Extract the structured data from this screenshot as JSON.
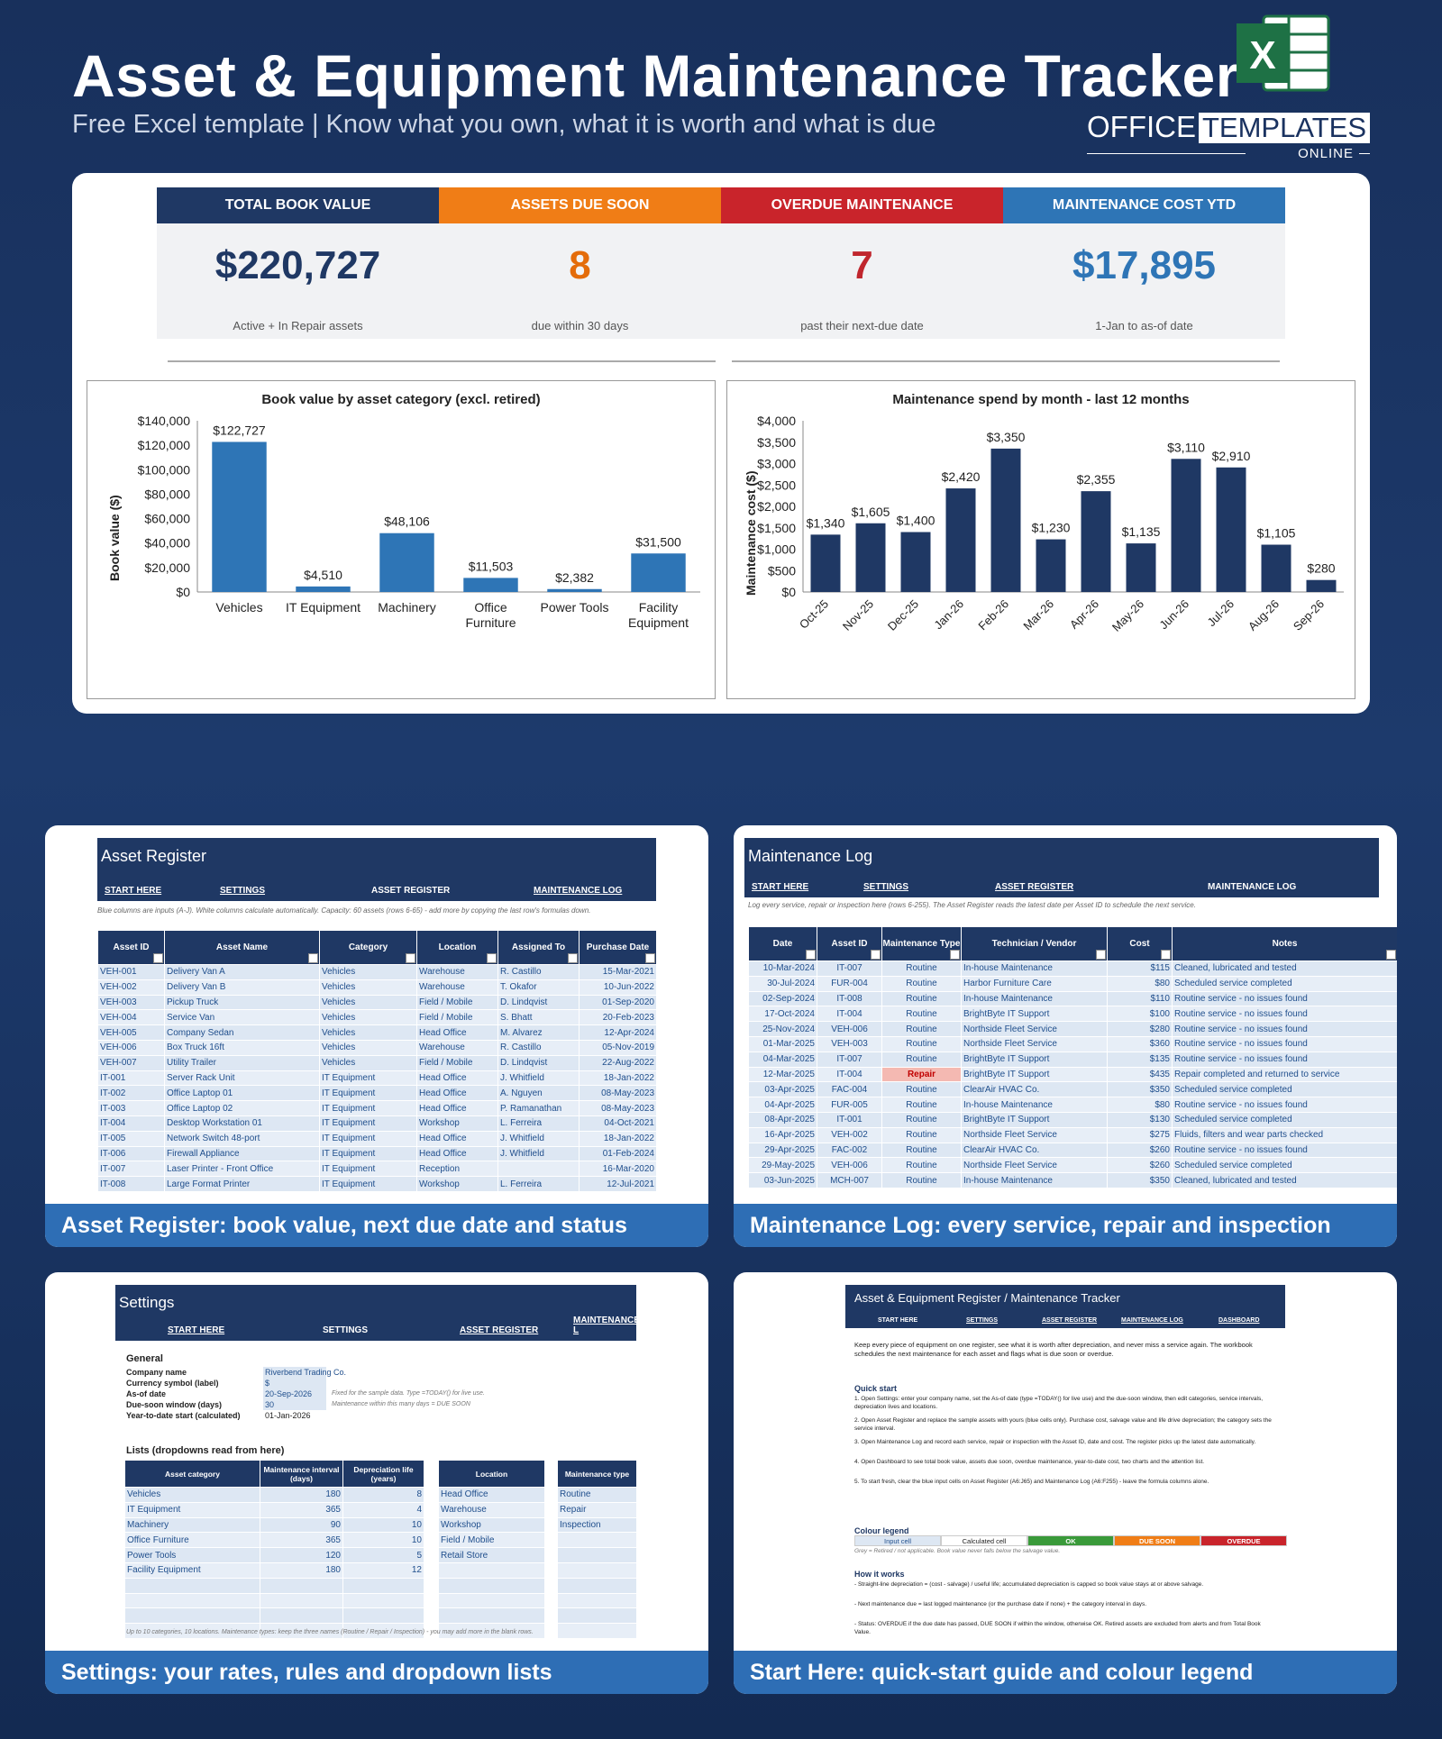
{
  "hero": {
    "title": "Asset & Equipment Maintenance Tracker",
    "subtitle": "Free Excel template  |  Know what you own, what it is worth and what is due",
    "brand_office": "OFFICE",
    "brand_templates": "TEMPLATES",
    "brand_online": "ONLINE",
    "excel_letter": "X"
  },
  "kpis": [
    {
      "label": "TOTAL BOOK VALUE",
      "value": "$220,727",
      "note": "Active + In Repair assets",
      "color": "#1f3864",
      "header_color": "#1f3864"
    },
    {
      "label": "ASSETS DUE SOON",
      "value": "8",
      "note": "due within 30 days",
      "color": "#e46c0a",
      "header_color": "#f07d16"
    },
    {
      "label": "OVERDUE MAINTENANCE",
      "value": "7",
      "note": "past their next-due date",
      "color": "#c0262d",
      "header_color": "#c9242b"
    },
    {
      "label": "MAINTENANCE COST YTD",
      "value": "$17,895",
      "note": "1-Jan to as-of date",
      "color": "#2e75b6",
      "header_color": "#2e75b6"
    }
  ],
  "chart_data": [
    {
      "type": "bar",
      "title": "Book value by asset category (excl. retired)",
      "ylabel": "Book value ($)",
      "categories": [
        "Vehicles",
        "IT Equipment",
        "Machinery",
        "Office Furniture",
        "Power Tools",
        "Facility Equipment"
      ],
      "category_lines": [
        [
          "Vehicles"
        ],
        [
          "IT Equipment"
        ],
        [
          "Machinery"
        ],
        [
          "Office",
          "Furniture"
        ],
        [
          "Power Tools"
        ],
        [
          "Facility",
          "Equipment"
        ]
      ],
      "values": [
        122727,
        4510,
        48106,
        11503,
        2382,
        31500
      ],
      "labels": [
        "$122,727",
        "$4,510",
        "$48,106",
        "$11,503",
        "$2,382",
        "$31,500"
      ],
      "ylim": [
        0,
        140000
      ],
      "yticks": [
        0,
        20000,
        40000,
        60000,
        80000,
        100000,
        120000,
        140000
      ],
      "ytick_labels": [
        "$0",
        "$20,000",
        "$40,000",
        "$60,000",
        "$80,000",
        "$100,000",
        "$120,000",
        "$140,000"
      ],
      "color": "#2e75b6"
    },
    {
      "type": "bar",
      "title": "Maintenance spend by month - last 12 months",
      "ylabel": "Maintenance cost ($)",
      "categories": [
        "Oct-25",
        "Nov-25",
        "Dec-25",
        "Jan-26",
        "Feb-26",
        "Mar-26",
        "Apr-26",
        "May-26",
        "Jun-26",
        "Jul-26",
        "Aug-26",
        "Sep-26"
      ],
      "values": [
        1340,
        1605,
        1400,
        2420,
        3350,
        1230,
        2355,
        1135,
        3110,
        2910,
        1105,
        280
      ],
      "labels": [
        "$1,340",
        "$1,605",
        "$1,400",
        "$2,420",
        "$3,350",
        "$1,230",
        "$2,355",
        "$1,135",
        "$3,110",
        "$2,910",
        "$1,105",
        "$280"
      ],
      "ylim": [
        0,
        4000
      ],
      "yticks": [
        0,
        500,
        1000,
        1500,
        2000,
        2500,
        3000,
        3500,
        4000
      ],
      "ytick_labels": [
        "$0",
        "$500",
        "$1,000",
        "$1,500",
        "$2,000",
        "$2,500",
        "$3,000",
        "$3,500",
        "$4,000"
      ],
      "color": "#1f3864"
    }
  ],
  "asset_register": {
    "title": "Asset Register",
    "nav": [
      "START HERE",
      "SETTINGS",
      "ASSET REGISTER",
      "MAINTENANCE LOG"
    ],
    "note": "Blue columns are inputs (A-J). White columns calculate automatically. Capacity: 60 assets (rows 6-65) - add more by copying the last row's formulas down.",
    "columns": [
      "Asset ID",
      "Asset Name",
      "Category",
      "Location",
      "Assigned To",
      "Purchase Date"
    ],
    "rows": [
      [
        "VEH-001",
        "Delivery Van A",
        "Vehicles",
        "Warehouse",
        "R. Castillo",
        "15-Mar-2021"
      ],
      [
        "VEH-002",
        "Delivery Van B",
        "Vehicles",
        "Warehouse",
        "T. Okafor",
        "10-Jun-2022"
      ],
      [
        "VEH-003",
        "Pickup Truck",
        "Vehicles",
        "Field / Mobile",
        "D. Lindqvist",
        "01-Sep-2020"
      ],
      [
        "VEH-004",
        "Service Van",
        "Vehicles",
        "Field / Mobile",
        "S. Bhatt",
        "20-Feb-2023"
      ],
      [
        "VEH-005",
        "Company Sedan",
        "Vehicles",
        "Head Office",
        "M. Alvarez",
        "12-Apr-2024"
      ],
      [
        "VEH-006",
        "Box Truck 16ft",
        "Vehicles",
        "Warehouse",
        "R. Castillo",
        "05-Nov-2019"
      ],
      [
        "VEH-007",
        "Utility Trailer",
        "Vehicles",
        "Field / Mobile",
        "D. Lindqvist",
        "22-Aug-2022"
      ],
      [
        "IT-001",
        "Server Rack Unit",
        "IT Equipment",
        "Head Office",
        "J. Whitfield",
        "18-Jan-2022"
      ],
      [
        "IT-002",
        "Office Laptop 01",
        "IT Equipment",
        "Head Office",
        "A. Nguyen",
        "08-May-2023"
      ],
      [
        "IT-003",
        "Office Laptop 02",
        "IT Equipment",
        "Head Office",
        "P. Ramanathan",
        "08-May-2023"
      ],
      [
        "IT-004",
        "Desktop Workstation 01",
        "IT Equipment",
        "Workshop",
        "L. Ferreira",
        "04-Oct-2021"
      ],
      [
        "IT-005",
        "Network Switch 48-port",
        "IT Equipment",
        "Head Office",
        "J. Whitfield",
        "18-Jan-2022"
      ],
      [
        "IT-006",
        "Firewall Appliance",
        "IT Equipment",
        "Head Office",
        "J. Whitfield",
        "01-Feb-2024"
      ],
      [
        "IT-007",
        "Laser Printer - Front Office",
        "IT Equipment",
        "Reception",
        "",
        "16-Mar-2020"
      ],
      [
        "IT-008",
        "Large Format Printer",
        "IT Equipment",
        "Workshop",
        "L. Ferreira",
        "12-Jul-2021"
      ]
    ],
    "caption": "Asset Register: book value, next due date and status"
  },
  "maintenance_log": {
    "title": "Maintenance Log",
    "nav": [
      "START HERE",
      "SETTINGS",
      "ASSET REGISTER",
      "MAINTENANCE LOG"
    ],
    "note": "Log every service, repair or inspection here (rows 6-255). The Asset Register reads the latest date per Asset ID to schedule the next service.",
    "columns": [
      "Date",
      "Asset ID",
      "Maintenance Type",
      "Technician / Vendor",
      "Cost",
      "Notes"
    ],
    "rows": [
      [
        "10-Mar-2024",
        "IT-007",
        "Routine",
        "In-house Maintenance",
        "$115",
        "Cleaned, lubricated and tested"
      ],
      [
        "30-Jul-2024",
        "FUR-004",
        "Routine",
        "Harbor Furniture Care",
        "$80",
        "Scheduled service completed"
      ],
      [
        "02-Sep-2024",
        "IT-008",
        "Routine",
        "In-house Maintenance",
        "$110",
        "Routine service - no issues found"
      ],
      [
        "17-Oct-2024",
        "IT-004",
        "Routine",
        "BrightByte IT Support",
        "$100",
        "Routine service - no issues found"
      ],
      [
        "25-Nov-2024",
        "VEH-006",
        "Routine",
        "Northside Fleet Service",
        "$280",
        "Routine service - no issues found"
      ],
      [
        "01-Mar-2025",
        "VEH-003",
        "Routine",
        "Northside Fleet Service",
        "$360",
        "Routine service - no issues found"
      ],
      [
        "04-Mar-2025",
        "IT-007",
        "Routine",
        "BrightByte IT Support",
        "$135",
        "Routine service - no issues found"
      ],
      [
        "12-Mar-2025",
        "IT-004",
        "Repair",
        "BrightByte IT Support",
        "$435",
        "Repair completed and returned to service"
      ],
      [
        "03-Apr-2025",
        "FAC-004",
        "Routine",
        "ClearAir HVAC Co.",
        "$350",
        "Scheduled service completed"
      ],
      [
        "04-Apr-2025",
        "FUR-005",
        "Routine",
        "In-house Maintenance",
        "$80",
        "Routine service - no issues found"
      ],
      [
        "08-Apr-2025",
        "IT-001",
        "Routine",
        "BrightByte IT Support",
        "$130",
        "Scheduled service completed"
      ],
      [
        "16-Apr-2025",
        "VEH-002",
        "Routine",
        "Northside Fleet Service",
        "$275",
        "Fluids, filters and wear parts checked"
      ],
      [
        "29-Apr-2025",
        "FAC-002",
        "Routine",
        "ClearAir HVAC Co.",
        "$260",
        "Routine service - no issues found"
      ],
      [
        "29-May-2025",
        "VEH-006",
        "Routine",
        "Northside Fleet Service",
        "$260",
        "Scheduled service completed"
      ],
      [
        "03-Jun-2025",
        "MCH-007",
        "Routine",
        "In-house Maintenance",
        "$350",
        "Cleaned, lubricated and tested"
      ]
    ],
    "caption": "Maintenance Log: every service, repair and inspection"
  },
  "settings": {
    "title": "Settings",
    "nav": [
      "START HERE",
      "SETTINGS",
      "ASSET REGISTER",
      "MAINTENANCE L"
    ],
    "general_heading": "General",
    "general": [
      {
        "label": "Company name",
        "value": "Riverbend Trading Co.",
        "note": ""
      },
      {
        "label": "Currency symbol (label)",
        "value": "$",
        "note": ""
      },
      {
        "label": "As-of date",
        "value": "20-Sep-2026",
        "note": "Fixed for the sample data. Type =TODAY() for live use."
      },
      {
        "label": "Due-soon window (days)",
        "value": "30",
        "note": "Maintenance within this many days = DUE SOON"
      },
      {
        "label": "Year-to-date start (calculated)",
        "value": "01-Jan-2026",
        "note": ""
      }
    ],
    "lists_heading": "Lists (dropdowns read from here)",
    "cat_columns": [
      "Asset category",
      "Maintenance interval (days)",
      "Depreciation life (years)"
    ],
    "cat_rows": [
      [
        "Vehicles",
        "180",
        "8"
      ],
      [
        "IT Equipment",
        "365",
        "4"
      ],
      [
        "Machinery",
        "90",
        "10"
      ],
      [
        "Office Furniture",
        "365",
        "10"
      ],
      [
        "Power Tools",
        "120",
        "5"
      ],
      [
        "Facility Equipment",
        "180",
        "12"
      ]
    ],
    "loc_column": "Location",
    "loc_rows": [
      "Head Office",
      "Warehouse",
      "Workshop",
      "Field / Mobile",
      "Retail Store"
    ],
    "type_column": "Maintenance type",
    "type_rows": [
      "Routine",
      "Repair",
      "Inspection"
    ],
    "footnote": "Up to 10 categories, 10 locations. Maintenance types: keep the three names (Routine / Repair / Inspection) - you may add more in the blank rows.",
    "caption": "Settings: your rates, rules and dropdown lists"
  },
  "start_here": {
    "title": "Asset & Equipment Register / Maintenance Tracker",
    "nav": [
      "START HERE",
      "SETTINGS",
      "ASSET REGISTER",
      "MAINTENANCE LOG",
      "DASHBOARD"
    ],
    "intro": "Keep every piece of equipment on one register, see what it is worth after depreciation, and never miss a service again. The workbook schedules the next maintenance for each asset and flags what is due soon or overdue.",
    "quick_heading": "Quick start",
    "steps": [
      "1.  Open Settings: enter your company name, set the As-of date (type =TODAY() for live use) and the due-soon window, then edit categories, service intervals, depreciation lives and locations.",
      "2.  Open Asset Register and replace the sample assets with yours (blue cells only). Purchase cost, salvage value and life drive depreciation; the category sets the service interval.",
      "3.  Open Maintenance Log and record each service, repair or inspection with the Asset ID, date and cost. The register picks up the latest date automatically.",
      "4.  Open Dashboard to see total book value, assets due soon, overdue maintenance, year-to-date cost, two charts and the attention list.",
      "5.  To start fresh, clear the blue input cells on Asset Register (A6:J65) and Maintenance Log (A6:F255) - leave the formula columns alone."
    ],
    "legend_heading": "Colour legend",
    "legend": [
      {
        "label": "Input cell",
        "bg": "#dde7f3",
        "fg": "#1f4e8c"
      },
      {
        "label": "Calculated cell",
        "bg": "#ffffff",
        "fg": "#222222"
      },
      {
        "label": "OK",
        "bg": "#3a9a3a",
        "fg": "#ffffff"
      },
      {
        "label": "DUE SOON",
        "bg": "#f07d16",
        "fg": "#ffffff"
      },
      {
        "label": "OVERDUE",
        "bg": "#c9242b",
        "fg": "#ffffff"
      }
    ],
    "legend_note": "Grey = Retired / not applicable. Book value never falls below the salvage value.",
    "how_heading": "How it works",
    "how": [
      "-  Straight-line depreciation = (cost - salvage) / useful life; accumulated depreciation is capped so book value stays at or above salvage.",
      "-  Next maintenance due = last logged maintenance (or the purchase date if none) + the category interval in days.",
      "-  Status: OVERDUE if the due date has passed, DUE SOON if within the window, otherwise OK. Retired assets are excluded from alerts and from Total Book Value."
    ],
    "caption": "Start Here: quick-start guide and colour legend"
  }
}
